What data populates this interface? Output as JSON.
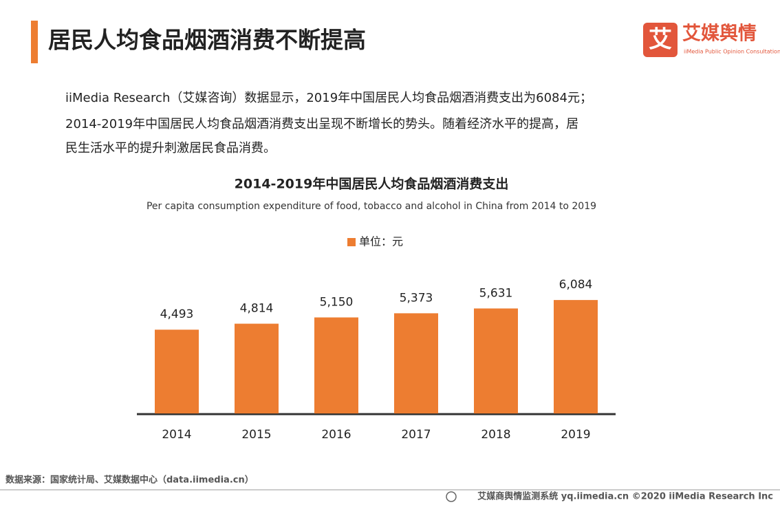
{
  "header": {
    "title": "居民人均食品烟酒消费不断提高",
    "logo_mark": "艾",
    "logo_name": "艾媒舆情",
    "logo_tagline": "iiMedia Public Opinion Consultation"
  },
  "paragraph": {
    "lines": [
      "iiMedia Research（艾媒咨询）数据显示，2019年中国居民人均食品烟酒消费支出为6084元；",
      "2014-2019年中国居民人均食品烟酒消费支出呈现不断增长的势头。随着经济水平的提高，居",
      "民生活水平的提升刺激居民食品消费。"
    ]
  },
  "chart_data": {
    "type": "bar",
    "title": "2014-2019年中国居民人均食品烟酒消费支出",
    "subtitle": "Per capita consumption expenditure of food, tobacco and alcohol in China from 2014 to 2019",
    "categories": [
      "2014",
      "2015",
      "2016",
      "2017",
      "2018",
      "2019"
    ],
    "series": [
      {
        "name": "单位：元",
        "color": "#ed7d31",
        "values": [
          4493,
          4814,
          5150,
          5373,
          5631,
          6084
        ],
        "value_labels": [
          "4,493",
          "4,814",
          "5,150",
          "5,373",
          "5,631",
          "6,084"
        ]
      }
    ]
  },
  "source": "数据来源：国家统计局、艾媒数据中心（data.iimedia.cn）",
  "footer": "艾媒商舆情监测系统 yq.iimedia.cn  ©2020  iiMedia Research  Inc"
}
